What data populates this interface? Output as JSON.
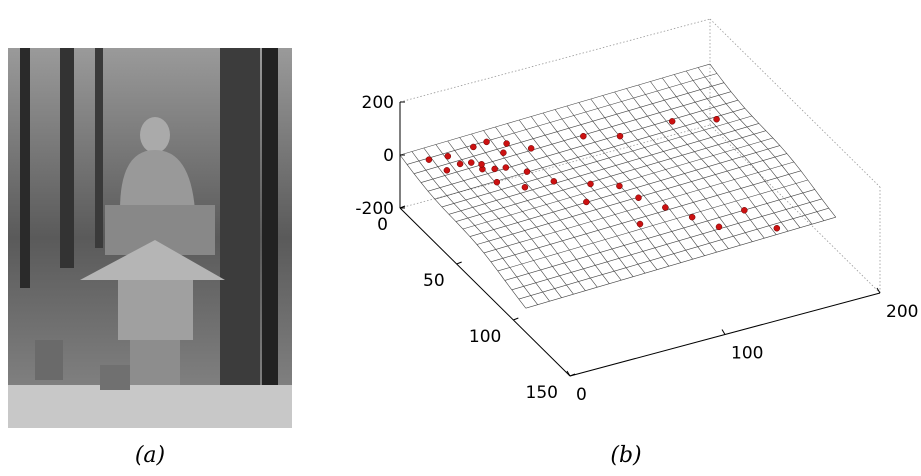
{
  "captions": [
    "(a)",
    "(b)"
  ],
  "chart_data": {
    "type": "scatter3d",
    "xlim": [
      0,
      150
    ],
    "ylim": [
      0,
      200
    ],
    "zlim": [
      -200,
      200
    ],
    "xticks": [
      0,
      50,
      100,
      150
    ],
    "yticks": [
      0,
      100,
      200
    ],
    "zticks": [
      -200,
      0,
      200
    ],
    "series": [
      {
        "color": "#cc1111",
        "x": [
          5,
          8,
          12,
          15,
          18,
          20,
          22,
          25,
          14,
          10,
          16,
          28,
          30,
          35,
          20,
          40,
          45,
          25,
          50,
          30,
          35,
          40,
          60,
          70,
          80,
          90,
          85,
          100,
          75,
          55,
          12,
          8
        ],
        "y": [
          15,
          25,
          30,
          35,
          40,
          38,
          45,
          50,
          20,
          40,
          55,
          42,
          60,
          55,
          70,
          70,
          90,
          100,
          105,
          120,
          150,
          175,
          110,
          120,
          130,
          140,
          160,
          170,
          100,
          80,
          60,
          50
        ],
        "z": [
          -20,
          -10,
          -30,
          -20,
          -40,
          -10,
          -30,
          -20,
          -30,
          10,
          -10,
          -50,
          -30,
          -60,
          0,
          -40,
          -60,
          20,
          -70,
          10,
          40,
          30,
          -80,
          -90,
          -100,
          -110,
          -100,
          -120,
          -100,
          -70,
          0,
          5
        ]
      }
    ]
  }
}
